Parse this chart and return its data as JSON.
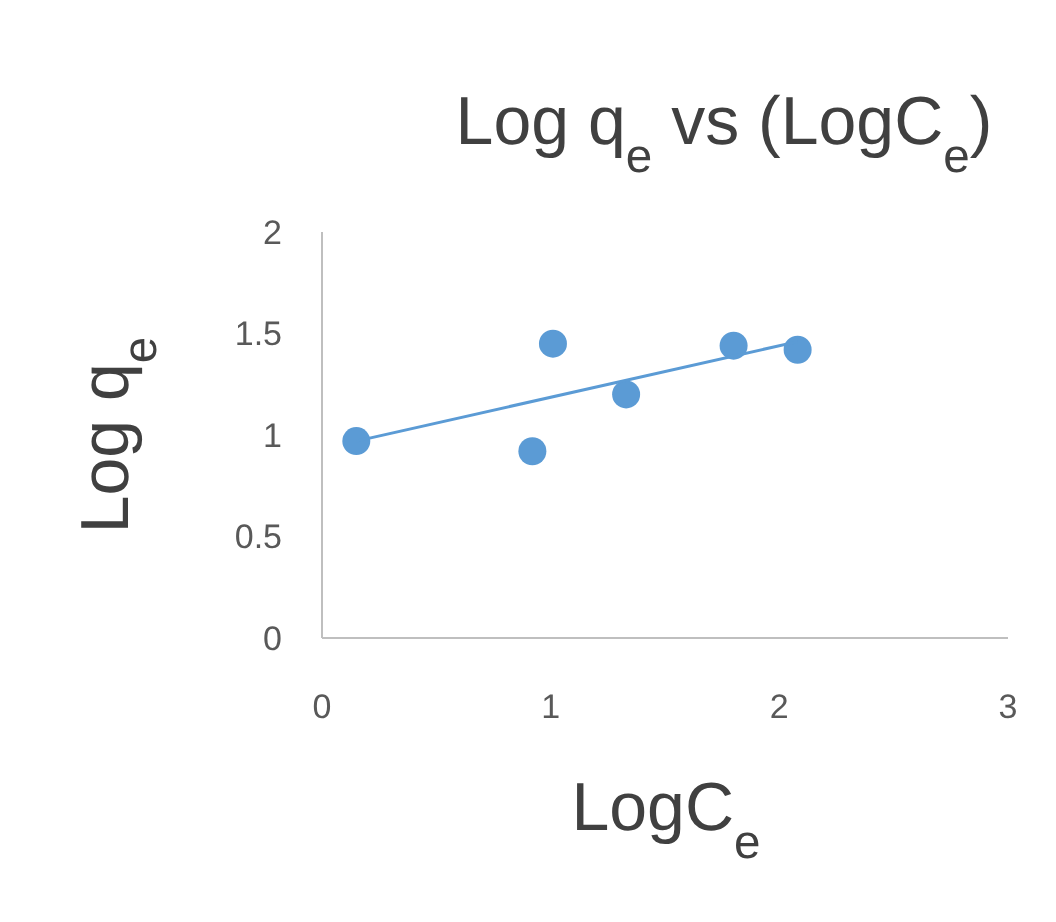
{
  "chart_data": {
    "type": "scatter",
    "title": "Log q$_{e}$ vs (LogC$_{e}$)",
    "xlabel": "LogC$_{e}$",
    "ylabel": "Log q$_{e}$",
    "x": [
      0.15,
      0.92,
      1.01,
      1.33,
      1.8,
      2.08
    ],
    "series": [
      {
        "color": "#5b9bd5",
        "values": [
          0.97,
          0.92,
          1.45,
          1.2,
          1.44,
          1.42
        ],
        "marker": "circle"
      },
      {
        "type": "line",
        "color": "#5b9bd5",
        "x": [
          0.15,
          2.08
        ],
        "values": [
          0.97,
          1.46
        ],
        "marker": "none",
        "line_style": "solid"
      }
    ],
    "xlim": [
      0,
      3
    ],
    "ylim": [
      0,
      2
    ],
    "xticks": [
      0,
      1,
      2,
      3
    ],
    "yticks": [
      0,
      0.5,
      1,
      1.5,
      2
    ],
    "grid": false
  }
}
